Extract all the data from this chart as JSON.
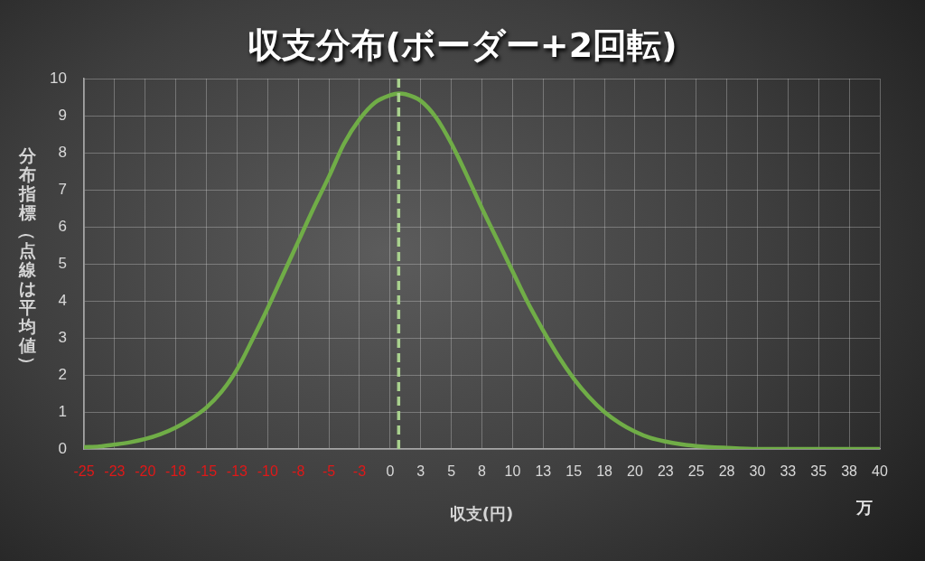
{
  "chart_data": {
    "type": "line",
    "title": "収支分布(ボーダー+2回転)",
    "xlabel": "収支(円)",
    "ylabel": "分布指標（点線は平均値）",
    "annotations": [
      "万"
    ],
    "x": [
      -25,
      -23.75,
      -22.5,
      -21.25,
      -20,
      -18.75,
      -17.5,
      -16.25,
      -15,
      -13.75,
      -12.5,
      -11.25,
      -10,
      -8.75,
      -7.5,
      -6.25,
      -5,
      -3.75,
      -2.5,
      -1.25,
      0,
      0.7,
      1.25,
      2.5,
      3.75,
      5,
      6.25,
      7.5,
      8.75,
      10,
      11.25,
      12.5,
      13.75,
      15,
      16.25,
      17.5,
      18.75,
      20,
      21.25,
      22.5,
      23.75,
      25,
      27.5,
      30,
      32.5,
      35,
      37.5,
      40
    ],
    "values": [
      0.05,
      0.07,
      0.12,
      0.18,
      0.27,
      0.4,
      0.58,
      0.82,
      1.12,
      1.55,
      2.15,
      2.95,
      3.8,
      4.7,
      5.6,
      6.5,
      7.35,
      8.25,
      8.9,
      9.35,
      9.55,
      9.6,
      9.58,
      9.4,
      8.95,
      8.25,
      7.4,
      6.5,
      5.65,
      4.8,
      3.95,
      3.2,
      2.5,
      1.9,
      1.4,
      1.0,
      0.7,
      0.47,
      0.3,
      0.2,
      0.13,
      0.08,
      0.03,
      0,
      0,
      0,
      0,
      0
    ],
    "color": "#70ad47",
    "xlim": [
      -25,
      40
    ],
    "xticks": [
      -25,
      {
        "value": -22.5,
        "label": "-23"
      },
      -20,
      {
        "value": -17.5,
        "label": "-18"
      },
      -15,
      {
        "value": -12.5,
        "label": "-13"
      },
      -10,
      {
        "value": -7.5,
        "label": "-8"
      },
      -5,
      {
        "value": -2.5,
        "label": "-3"
      },
      0,
      {
        "value": 2.5,
        "label": "3"
      },
      5,
      {
        "value": 7.5,
        "label": "8"
      },
      10,
      {
        "value": 12.5,
        "label": "13"
      },
      15,
      {
        "value": 17.5,
        "label": "18"
      },
      20,
      {
        "value": 22.5,
        "label": "23"
      },
      25,
      {
        "value": 27.5,
        "label": "28"
      },
      30,
      {
        "value": 32.5,
        "label": "33"
      },
      35,
      {
        "value": 37.5,
        "label": "38"
      },
      40
    ],
    "ylim": [
      0,
      10
    ],
    "yticks": [
      0,
      1,
      2,
      3,
      4,
      5,
      6,
      7,
      8,
      9,
      10
    ],
    "grid": true,
    "legend": false,
    "marker": "none",
    "ref_lines": [
      {
        "axis": "x",
        "value": 0.7,
        "color": "#a9d18e",
        "line_style": "dashed"
      }
    ]
  }
}
